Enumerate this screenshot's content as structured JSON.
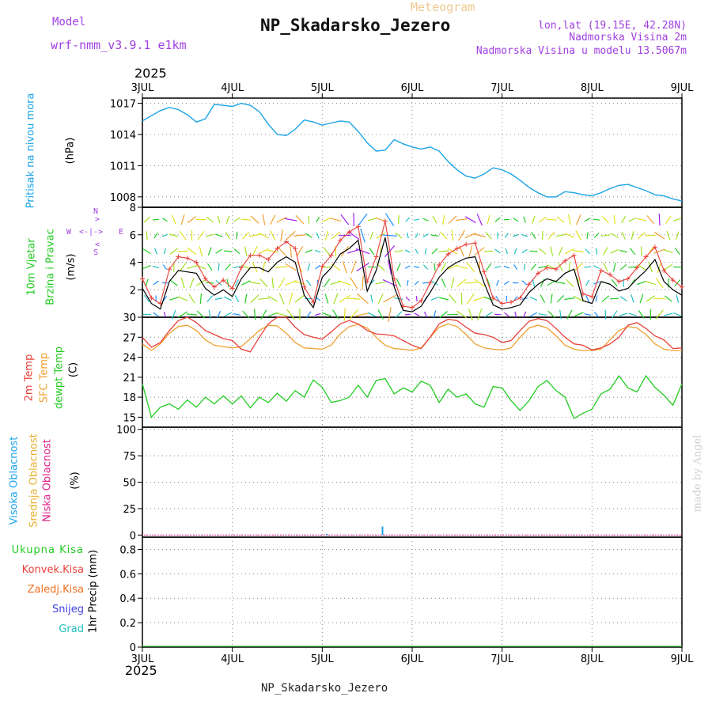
{
  "header": {
    "model_label": "Model",
    "model_name": "wrf-nmm_v3.9.1 e1km",
    "meteogram_label": "Meteogram",
    "station": "NP_Skadarsko_Jezero",
    "lonlat": "lon,lat (19.15E, 42.28N)",
    "elevation": "Nadmorska Visina 2m",
    "model_elevation": "Nadmorska Visina u modelu 13.5067m",
    "year_top": "2025",
    "year_bottom": "2025",
    "footer_station": "NP_Skadarsko_Jezero",
    "credit": "made by Angel"
  },
  "panel_labels": {
    "pressure": {
      "title": "Pritisak na nivou mora",
      "unit": "(hPa)"
    },
    "wind": {
      "title1": "10m Vjetar",
      "title2": "Brzina i Pravac",
      "unit": "(m/s)",
      "compass_top": "N",
      "compass_west": "W",
      "compass_east": "E",
      "compass_bottom": "S"
    },
    "temp": {
      "t2m": "2m Temp",
      "sfc": "SFC Temp",
      "dew": "dewpt Temp",
      "unit": "(C)"
    },
    "cloud": {
      "high": "Visoka Oblacnost",
      "mid": "Srednja Oblacnost",
      "low": "Niska Oblacnost",
      "unit": "(%)"
    },
    "precip": {
      "total": "Ukupna Kisa",
      "conv": "Konvek.Kisa",
      "frozen": "Zaledj.Kisa",
      "snow": "Snijeg",
      "graupel": "Grad",
      "unit": "1hr Precip (mm)"
    }
  },
  "colors": {
    "pressure": "#1ba3e6",
    "t2m": "#e8403a",
    "sfc": "#f0a030",
    "dew": "#22cc22",
    "wind_speed": "#000000",
    "wind_gust": "#e8403a",
    "purple": "#a040e0",
    "high_cloud": "#1ba3e6",
    "mid_cloud": "#e8b030",
    "low_cloud": "#e0208a",
    "precip_total": "#22cc22",
    "precip_conv": "#e8403a",
    "precip_frozen": "#f07020",
    "snow": "#4040e0",
    "graupel": "#20c0c0"
  },
  "chart_data": [
    {
      "type": "line",
      "name": "pressure",
      "x_ticks": [
        "3JUL",
        "4JUL",
        "5JUL",
        "6JUL",
        "7JUL",
        "8JUL",
        "9JUL"
      ],
      "y_ticks": [
        1008,
        1011,
        1014,
        1017
      ],
      "ylim": [
        1007,
        1017.5
      ],
      "x_days": [
        0,
        0.1,
        0.2,
        0.3,
        0.4,
        0.5,
        0.6,
        0.7,
        0.8,
        0.9,
        1.0,
        1.1,
        1.2,
        1.3,
        1.4,
        1.5,
        1.6,
        1.7,
        1.8,
        1.9,
        2.0,
        2.1,
        2.2,
        2.3,
        2.4,
        2.5,
        2.6,
        2.7,
        2.8,
        2.9,
        3.0,
        3.1,
        3.2,
        3.3,
        3.4,
        3.5,
        3.6,
        3.7,
        3.8,
        3.9,
        4.0,
        4.1,
        4.2,
        4.3,
        4.4,
        4.5,
        4.6,
        4.7,
        4.8,
        4.9,
        5.0,
        5.1,
        5.2,
        5.3,
        5.4,
        5.5,
        5.6,
        5.7,
        5.8,
        5.9,
        6.0
      ],
      "values": [
        1015.3,
        1015.8,
        1016.3,
        1016.6,
        1016.4,
        1015.9,
        1015.2,
        1015.5,
        1016.9,
        1016.8,
        1016.7,
        1017.0,
        1016.8,
        1016.2,
        1015.0,
        1014.0,
        1013.9,
        1014.5,
        1015.4,
        1015.2,
        1014.9,
        1015.1,
        1015.3,
        1015.2,
        1014.3,
        1013.2,
        1012.4,
        1012.5,
        1013.5,
        1013.1,
        1012.8,
        1012.6,
        1012.8,
        1012.4,
        1011.4,
        1010.6,
        1010.0,
        1009.8,
        1010.2,
        1010.8,
        1010.6,
        1010.2,
        1009.6,
        1008.9,
        1008.4,
        1008.0,
        1008.0,
        1008.5,
        1008.4,
        1008.2,
        1008.1,
        1008.4,
        1008.8,
        1009.1,
        1009.2,
        1008.9,
        1008.6,
        1008.2,
        1008.1,
        1007.8,
        1007.6
      ]
    },
    {
      "type": "line",
      "name": "wind",
      "y_ticks": [
        0,
        2,
        4,
        6,
        8
      ],
      "ylim": [
        0,
        8
      ],
      "x_days": [
        0,
        0.1,
        0.2,
        0.3,
        0.4,
        0.5,
        0.6,
        0.7,
        0.8,
        0.9,
        1.0,
        1.1,
        1.2,
        1.3,
        1.4,
        1.5,
        1.6,
        1.7,
        1.8,
        1.9,
        2.0,
        2.1,
        2.2,
        2.3,
        2.4,
        2.5,
        2.6,
        2.7,
        2.8,
        2.9,
        3.0,
        3.1,
        3.2,
        3.3,
        3.4,
        3.5,
        3.6,
        3.7,
        3.8,
        3.9,
        4.0,
        4.1,
        4.2,
        4.3,
        4.4,
        4.5,
        4.6,
        4.7,
        4.8,
        4.9,
        5.0,
        5.1,
        5.2,
        5.3,
        5.4,
        5.5,
        5.6,
        5.7,
        5.8,
        5.9,
        6.0
      ],
      "speed": [
        2.1,
        1.0,
        0.6,
        2.6,
        3.4,
        3.3,
        3.2,
        2.1,
        1.6,
        2.0,
        1.5,
        2.8,
        3.6,
        3.6,
        3.3,
        4.0,
        4.4,
        4.0,
        1.6,
        0.7,
        2.9,
        3.6,
        4.6,
        5.0,
        5.6,
        1.9,
        3.4,
        5.8,
        2.2,
        0.5,
        0.4,
        0.8,
        1.8,
        2.9,
        3.6,
        4.0,
        4.3,
        4.4,
        2.5,
        0.9,
        0.6,
        0.7,
        0.9,
        1.8,
        2.4,
        2.8,
        2.6,
        3.2,
        3.5,
        1.2,
        1.0,
        2.6,
        2.4,
        1.9,
        2.1,
        2.8,
        3.4,
        4.2,
        2.6,
        2.0,
        1.6
      ],
      "gust": [
        2.8,
        1.4,
        1.0,
        3.5,
        4.4,
        4.3,
        4.0,
        2.8,
        2.2,
        2.7,
        2.1,
        3.6,
        4.5,
        4.5,
        4.2,
        5.0,
        5.5,
        5.0,
        2.2,
        1.1,
        3.7,
        4.5,
        5.6,
        6.2,
        6.6,
        2.6,
        4.4,
        7.0,
        2.8,
        0.8,
        0.7,
        1.2,
        2.5,
        3.8,
        4.6,
        5.0,
        5.3,
        5.4,
        3.3,
        1.4,
        1.0,
        1.1,
        1.4,
        2.4,
        3.2,
        3.6,
        3.5,
        4.1,
        4.5,
        1.7,
        1.5,
        3.4,
        3.1,
        2.6,
        2.8,
        3.6,
        4.4,
        5.1,
        3.4,
        2.7,
        2.2
      ]
    },
    {
      "type": "line",
      "name": "temperature",
      "y_ticks": [
        15,
        18,
        21,
        24,
        27,
        30
      ],
      "ylim": [
        13.5,
        30
      ],
      "x_days": [
        0,
        0.1,
        0.2,
        0.3,
        0.4,
        0.5,
        0.6,
        0.7,
        0.8,
        0.9,
        1.0,
        1.1,
        1.2,
        1.3,
        1.4,
        1.5,
        1.6,
        1.7,
        1.8,
        1.9,
        2.0,
        2.1,
        2.2,
        2.3,
        2.4,
        2.5,
        2.6,
        2.7,
        2.8,
        2.9,
        3.0,
        3.1,
        3.2,
        3.3,
        3.4,
        3.5,
        3.6,
        3.7,
        3.8,
        3.9,
        4.0,
        4.1,
        4.2,
        4.3,
        4.4,
        4.5,
        4.6,
        4.7,
        4.8,
        4.9,
        5.0,
        5.1,
        5.2,
        5.3,
        5.4,
        5.5,
        5.6,
        5.7,
        5.8,
        5.9,
        6.0
      ],
      "t2m": [
        27.0,
        25.5,
        26.2,
        28.0,
        29.5,
        30.0,
        29.2,
        28.0,
        27.4,
        26.8,
        26.5,
        25.2,
        24.8,
        27.0,
        29.0,
        30.0,
        30.0,
        28.5,
        27.4,
        27.0,
        26.7,
        27.8,
        29.0,
        29.5,
        29.0,
        28.0,
        27.5,
        27.4,
        27.2,
        26.5,
        25.8,
        25.3,
        27.0,
        29.0,
        29.7,
        29.5,
        28.5,
        27.6,
        27.4,
        27.0,
        26.2,
        26.5,
        28.0,
        29.4,
        29.8,
        29.5,
        28.3,
        27.0,
        26.0,
        25.8,
        25.1,
        25.4,
        26.0,
        27.0,
        28.8,
        29.2,
        28.3,
        27.2,
        26.6,
        25.3,
        25.4
      ],
      "sfc": [
        26.0,
        25.0,
        26.0,
        27.6,
        28.6,
        28.8,
        28.0,
        26.6,
        25.8,
        25.6,
        25.4,
        25.6,
        26.8,
        28.0,
        28.8,
        28.7,
        27.6,
        26.2,
        25.4,
        25.3,
        25.2,
        25.8,
        27.5,
        28.6,
        28.9,
        28.4,
        27.0,
        25.8,
        25.3,
        25.2,
        25.0,
        25.4,
        27.0,
        28.5,
        29.0,
        28.6,
        27.4,
        26.0,
        25.4,
        25.2,
        25.1,
        25.4,
        27.0,
        28.4,
        28.8,
        28.4,
        27.2,
        25.8,
        25.2,
        25.0,
        25.0,
        25.2,
        26.6,
        28.0,
        28.6,
        28.4,
        27.4,
        26.0,
        25.2,
        25.0,
        25.0
      ],
      "dew": [
        20.0,
        15.0,
        16.5,
        17.0,
        16.2,
        17.6,
        16.5,
        18.0,
        17.0,
        18.2,
        17.0,
        18.2,
        16.4,
        18.0,
        17.2,
        18.6,
        17.4,
        19.0,
        18.0,
        20.6,
        19.5,
        17.2,
        17.5,
        18.0,
        19.8,
        18.0,
        20.5,
        20.8,
        18.5,
        19.4,
        18.8,
        20.4,
        19.8,
        17.2,
        19.2,
        18.0,
        18.5,
        17.0,
        16.5,
        19.6,
        19.4,
        17.5,
        16.0,
        17.5,
        19.6,
        20.5,
        19.0,
        18.0,
        14.8,
        15.6,
        16.2,
        18.5,
        19.2,
        21.2,
        19.4,
        18.8,
        21.2,
        19.5,
        18.3,
        16.8,
        20.0
      ]
    },
    {
      "type": "bar",
      "name": "cloud",
      "y_ticks": [
        0,
        25,
        50,
        75,
        100
      ],
      "ylim": [
        -2,
        102
      ],
      "x_days": [
        2.05,
        2.67
      ],
      "high": [
        1,
        8
      ],
      "mid": [
        0,
        0
      ],
      "low": [
        0,
        0
      ]
    },
    {
      "type": "bar",
      "name": "precip",
      "y_ticks": [
        0,
        0.2,
        0.4,
        0.6,
        0.8
      ],
      "ylim": [
        0,
        0.9
      ],
      "x_days": [],
      "total": []
    }
  ]
}
